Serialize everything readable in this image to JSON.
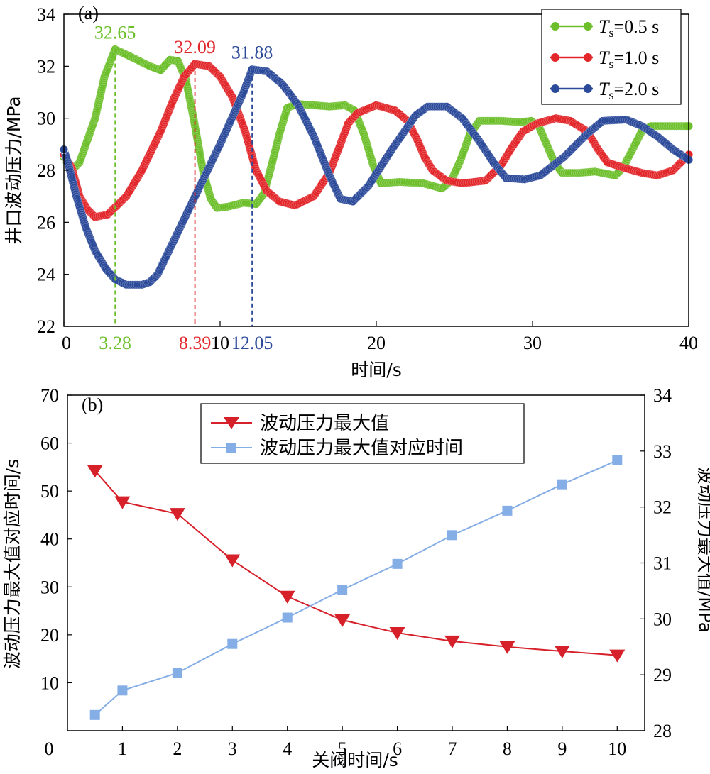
{
  "chart_data": [
    {
      "panel_label": "(a)",
      "type": "line",
      "xlabel": "时间/s",
      "ylabel": "井口波动压力/MPa",
      "xlim": [
        0,
        40
      ],
      "ylim": [
        22,
        34
      ],
      "xticks": [
        "0",
        "10",
        "20",
        "30",
        "40"
      ],
      "yticks": [
        "22",
        "24",
        "26",
        "28",
        "30",
        "32",
        "34"
      ],
      "legend": {
        "position": "top-right",
        "entries": [
          {
            "T": "T",
            "sub": "s",
            "rest": "=0.5 s"
          },
          {
            "T": "T",
            "sub": "s",
            "rest": "=1.0 s"
          },
          {
            "T": "T",
            "sub": "s",
            "rest": "=2.0 s"
          }
        ]
      },
      "series": [
        {
          "color": "#6cbf2a",
          "points": [
            [
              0,
              28.5
            ],
            [
              0.5,
              28.0
            ],
            [
              1,
              28.3
            ],
            [
              2,
              30.0
            ],
            [
              2.6,
              31.6
            ],
            [
              3.28,
              32.65
            ],
            [
              4.5,
              32.3
            ],
            [
              5.5,
              32.0
            ],
            [
              6.2,
              31.85
            ],
            [
              6.8,
              32.25
            ],
            [
              7.3,
              32.2
            ],
            [
              7.8,
              31.5
            ],
            [
              8.3,
              30.0
            ],
            [
              8.9,
              28.0
            ],
            [
              9.4,
              26.9
            ],
            [
              9.8,
              26.55
            ],
            [
              10.5,
              26.6
            ],
            [
              11.5,
              26.75
            ],
            [
              12.3,
              26.7
            ],
            [
              12.8,
              27.1
            ],
            [
              13.3,
              28.2
            ],
            [
              13.8,
              29.4
            ],
            [
              14.3,
              30.4
            ],
            [
              14.9,
              30.55
            ],
            [
              16,
              30.5
            ],
            [
              17,
              30.45
            ],
            [
              18,
              30.5
            ],
            [
              18.6,
              30.3
            ],
            [
              19.2,
              29.4
            ],
            [
              19.8,
              28.2
            ],
            [
              20.3,
              27.5
            ],
            [
              21.5,
              27.55
            ],
            [
              23,
              27.5
            ],
            [
              24.2,
              27.3
            ],
            [
              24.8,
              27.6
            ],
            [
              25.4,
              28.4
            ],
            [
              26,
              29.4
            ],
            [
              26.6,
              29.9
            ],
            [
              28,
              29.9
            ],
            [
              29.3,
              29.85
            ],
            [
              29.9,
              29.9
            ],
            [
              30.4,
              29.7
            ],
            [
              30.9,
              29.0
            ],
            [
              31.4,
              28.3
            ],
            [
              31.9,
              27.9
            ],
            [
              33,
              27.9
            ],
            [
              34,
              27.95
            ],
            [
              35.3,
              27.8
            ],
            [
              35.8,
              28.1
            ],
            [
              36.4,
              28.8
            ],
            [
              37,
              29.5
            ],
            [
              37.6,
              29.7
            ],
            [
              40,
              29.7
            ]
          ]
        },
        {
          "color": "#e2262a",
          "points": [
            [
              0,
              28.6
            ],
            [
              0.5,
              28.1
            ],
            [
              1,
              27.0
            ],
            [
              1.5,
              26.5
            ],
            [
              2,
              26.2
            ],
            [
              2.8,
              26.3
            ],
            [
              4,
              27.0
            ],
            [
              5,
              28.0
            ],
            [
              6.2,
              29.5
            ],
            [
              7,
              30.7
            ],
            [
              7.7,
              31.6
            ],
            [
              8.39,
              32.09
            ],
            [
              9.3,
              32.0
            ],
            [
              10,
              31.6
            ],
            [
              10.8,
              30.8
            ],
            [
              11.6,
              29.5
            ],
            [
              12.3,
              28.0
            ],
            [
              13,
              27.2
            ],
            [
              13.8,
              26.8
            ],
            [
              14.8,
              26.65
            ],
            [
              16,
              27.0
            ],
            [
              17,
              27.9
            ],
            [
              17.7,
              29.0
            ],
            [
              18.2,
              29.8
            ],
            [
              18.8,
              30.2
            ],
            [
              20,
              30.5
            ],
            [
              21.2,
              30.3
            ],
            [
              22,
              29.9
            ],
            [
              22.6,
              29.2
            ],
            [
              23.1,
              28.5
            ],
            [
              23.6,
              28.0
            ],
            [
              24.5,
              27.6
            ],
            [
              25.5,
              27.5
            ],
            [
              27,
              27.6
            ],
            [
              28,
              28.2
            ],
            [
              28.7,
              28.9
            ],
            [
              29.4,
              29.5
            ],
            [
              30.3,
              29.8
            ],
            [
              31.5,
              30.0
            ],
            [
              32.4,
              29.9
            ],
            [
              33.5,
              29.5
            ],
            [
              34.2,
              28.8
            ],
            [
              34.8,
              28.3
            ],
            [
              35.8,
              28.1
            ],
            [
              37,
              27.9
            ],
            [
              38,
              27.8
            ],
            [
              39,
              28.0
            ],
            [
              40,
              28.6
            ]
          ]
        },
        {
          "color": "#2c4a9a",
          "points": [
            [
              0,
              28.8
            ],
            [
              0.3,
              28.2
            ],
            [
              0.8,
              27.0
            ],
            [
              1.4,
              25.8
            ],
            [
              2,
              24.9
            ],
            [
              2.7,
              24.2
            ],
            [
              3.3,
              23.8
            ],
            [
              4,
              23.6
            ],
            [
              5,
              23.6
            ],
            [
              5.5,
              23.7
            ],
            [
              6,
              24.0
            ],
            [
              8,
              26.5
            ],
            [
              10,
              29.0
            ],
            [
              11.5,
              31.0
            ],
            [
              12.05,
              31.88
            ],
            [
              13,
              31.8
            ],
            [
              14,
              31.3
            ],
            [
              15,
              30.5
            ],
            [
              16,
              29.3
            ],
            [
              17,
              27.8
            ],
            [
              17.7,
              26.9
            ],
            [
              18.5,
              26.8
            ],
            [
              19.5,
              27.4
            ],
            [
              21,
              28.8
            ],
            [
              22.5,
              30.1
            ],
            [
              23.3,
              30.45
            ],
            [
              24.5,
              30.45
            ],
            [
              25.5,
              30.0
            ],
            [
              26.5,
              29.2
            ],
            [
              27.5,
              28.3
            ],
            [
              28.3,
              27.7
            ],
            [
              29.5,
              27.65
            ],
            [
              30.5,
              27.8
            ],
            [
              32,
              28.5
            ],
            [
              33.5,
              29.4
            ],
            [
              34.5,
              29.9
            ],
            [
              36,
              29.95
            ],
            [
              37,
              29.7
            ],
            [
              38,
              29.3
            ],
            [
              39,
              28.8
            ],
            [
              40,
              28.4
            ]
          ]
        }
      ],
      "annotations": [
        {
          "peak": "32.65",
          "time": "3.28",
          "x": 3.28,
          "y": 32.65,
          "color": "#6cbf2a"
        },
        {
          "peak": "32.09",
          "time": "8.39",
          "x": 8.39,
          "y": 32.09,
          "color": "#e2262a"
        },
        {
          "peak": "31.88",
          "time": "12.05",
          "x": 12.05,
          "y": 31.88,
          "color": "#2c4a9a"
        }
      ]
    },
    {
      "panel_label": "(b)",
      "type": "line",
      "xlabel": "关阀时间/s",
      "ylabel_left": "波动压力最大值对应时间/s",
      "ylabel_right": "波动压力最大值/MPa",
      "xlim": [
        0,
        10.5
      ],
      "ylim_left": [
        0,
        70
      ],
      "ylim_right": [
        28,
        34
      ],
      "xticks": [
        "0",
        "1",
        "2",
        "3",
        "4",
        "5",
        "6",
        "7",
        "8",
        "9",
        "10"
      ],
      "yticks_left": [
        "0",
        "10",
        "20",
        "30",
        "40",
        "50",
        "60",
        "70"
      ],
      "yticks_right": [
        "28",
        "29",
        "30",
        "31",
        "32",
        "33",
        "34"
      ],
      "legend": {
        "position": "top-center",
        "entries": [
          "波动压力最大值",
          "波动压力最大值对应时间"
        ]
      },
      "series": [
        {
          "name": "波动压力最大值",
          "axis": "right",
          "marker": "triangle-down",
          "color": "#d6202a",
          "x": [
            0.5,
            1,
            2,
            3,
            4,
            5,
            6,
            7,
            8,
            9,
            10
          ],
          "values": [
            32.65,
            32.09,
            31.88,
            31.05,
            30.4,
            29.98,
            29.75,
            29.6,
            29.5,
            29.42,
            29.35
          ]
        },
        {
          "name": "波动压力最大值对应时间",
          "axis": "left",
          "marker": "square",
          "color": "#86aee6",
          "x": [
            0.5,
            1,
            2,
            3,
            4,
            5,
            6,
            7,
            8,
            9,
            10
          ],
          "values": [
            3.28,
            8.39,
            12.05,
            18.1,
            23.6,
            29.4,
            34.8,
            40.8,
            45.9,
            51.4,
            56.4
          ]
        }
      ]
    }
  ]
}
